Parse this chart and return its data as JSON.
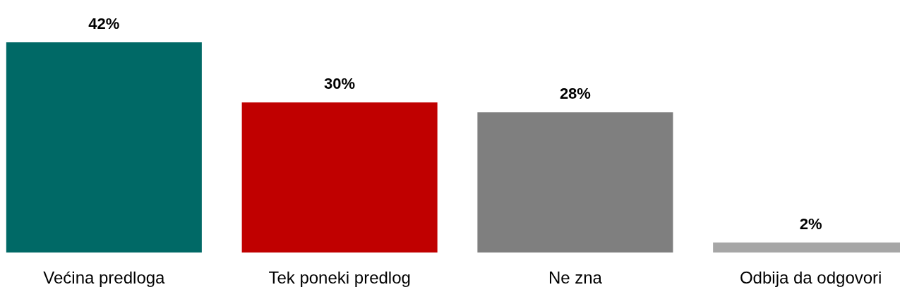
{
  "chart_data": {
    "type": "bar",
    "categories": [
      "Većina predloga",
      "Tek poneki predlog",
      "Ne zna",
      "Odbija da odgovori"
    ],
    "values": [
      42,
      30,
      28,
      2
    ],
    "colors": [
      "#006966",
      "#c00000",
      "#7f7f7f",
      "#a6a6a6"
    ],
    "value_labels": [
      "42%",
      "30%",
      "28%",
      "2%"
    ]
  }
}
